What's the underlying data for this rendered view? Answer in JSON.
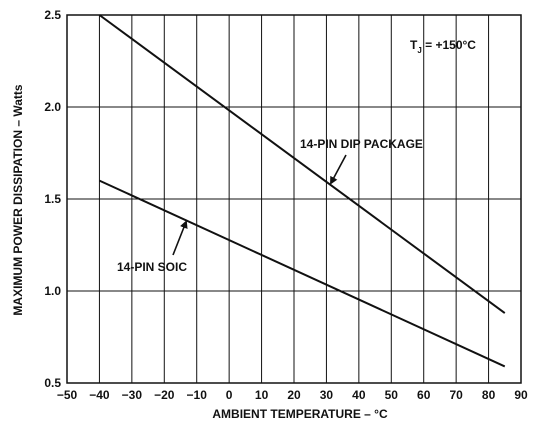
{
  "chart_data": {
    "type": "line",
    "xlabel": "AMBIENT TEMPERATURE – °C",
    "ylabel": "MAXIMUM POWER DISSIPATION – Watts",
    "xlim": [
      -50,
      90
    ],
    "ylim": [
      0.5,
      2.5
    ],
    "xticks": [
      -50,
      -40,
      -30,
      -20,
      -10,
      0,
      10,
      20,
      30,
      40,
      50,
      60,
      70,
      80,
      90
    ],
    "xtick_labels": [
      "−50",
      "−40",
      "−30",
      "−20",
      "−10",
      "0",
      "10",
      "20",
      "30",
      "40",
      "50",
      "60",
      "70",
      "80",
      "90"
    ],
    "yticks": [
      0.5,
      1.0,
      1.5,
      2.0,
      2.5
    ],
    "ytick_labels": [
      "0.5",
      "1.0",
      "1.5",
      "2.0",
      "2.5"
    ],
    "grid": true,
    "series": [
      {
        "name": "14-PIN DIP PACKAGE",
        "x": [
          -40,
          85
        ],
        "y": [
          2.5,
          0.88
        ]
      },
      {
        "name": "14-PIN SOIC",
        "x": [
          -40,
          85
        ],
        "y": [
          1.6,
          0.59
        ]
      }
    ],
    "annotations": {
      "tj_main": "T",
      "tj_sub": "J",
      "tj_rest": " = +150°C"
    }
  }
}
